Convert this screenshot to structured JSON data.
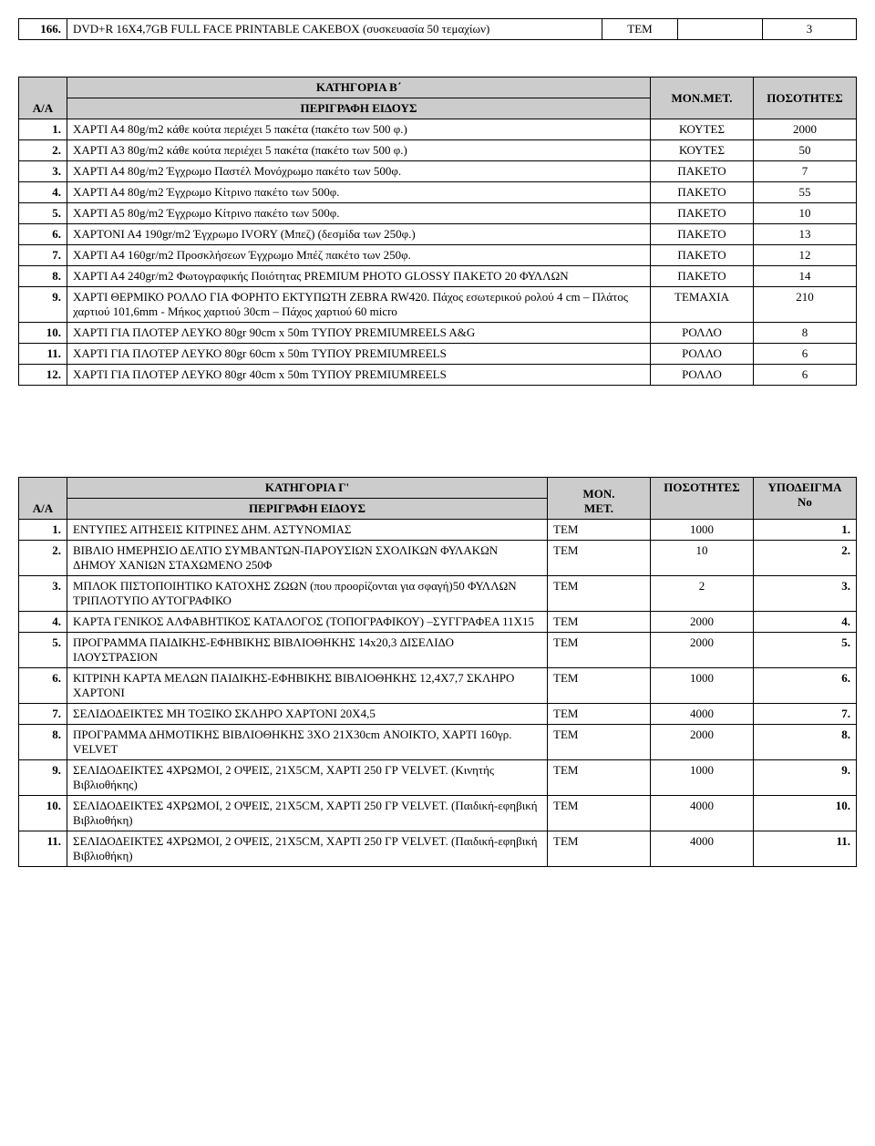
{
  "table1": {
    "rows": [
      {
        "n": "166.",
        "desc": "DVD+R 16X4,7GB FULL FACE  PRINTABLE CAKEBOX (συσκευασία  50 τεμαχίων)",
        "unit": "TEM",
        "qty": "3"
      }
    ]
  },
  "tableB": {
    "aa_label": "Α/Α",
    "category_title": "ΚΑΤΗΓΟΡΙΑ Β΄",
    "desc_label": "ΠΕΡΙΓΡΑΦΗ ΕΙΔΟΥΣ",
    "monmet": "ΜΟΝ.ΜΕΤ.",
    "qty_label": "ΠΟΣΟΤΗΤΕΣ",
    "rows": [
      {
        "n": "1.",
        "desc": "ΧΑΡΤΙ Α4 80g/m2 κάθε κούτα περιέχει 5 πακέτα (πακέτο των 500 φ.)",
        "unit": "ΚΟΥΤΕΣ",
        "qty": "2000"
      },
      {
        "n": "2.",
        "desc": "ΧΑΡΤΙ Α3 80g/m2 κάθε κούτα περιέχει 5 πακέτα (πακέτο των 500 φ.)",
        "unit": "ΚΟΥΤΕΣ",
        "qty": "50"
      },
      {
        "n": "3.",
        "desc": "ΧΑΡΤΙ Α4 80g/m2 Έγχρωμο Παστέλ Μονόχρωμο πακέτο των 500φ.",
        "unit": "ΠΑΚΕΤΟ",
        "qty": "7"
      },
      {
        "n": "4.",
        "desc": "ΧΑΡΤΙ Α4 80g/m2 Έγχρωμο Κίτρινο πακέτο των 500φ.",
        "unit": "ΠΑΚΕΤΟ",
        "qty": "55"
      },
      {
        "n": "5.",
        "desc": "ΧΑΡΤΙ Α5 80g/m2 Έγχρωμο Κίτρινο πακέτο των 500φ.",
        "unit": "ΠΑΚΕΤΟ",
        "qty": "10"
      },
      {
        "n": "6.",
        "desc": "ΧΑΡΤΟΝΙ Α4 190gr/m2  Έγχρωμο IVORY (Μπεζ) (δεσμίδα των 250φ.)",
        "unit": "ΠΑΚΕΤΟ",
        "qty": "13"
      },
      {
        "n": "7.",
        "desc": "ΧΑΡΤΙ Α4 160gr/m2 Προσκλήσεων  Έγχρωμο Μπέζ  πακέτο των 250φ.",
        "unit": "ΠΑΚΕΤΟ",
        "qty": "12"
      },
      {
        "n": "8.",
        "desc": "ΧΑΡΤΙ Α4 240gr/m2  Φωτογραφικής Ποιότητας  PREMIUM PHOTO GLOSSY  ΠΑΚΕΤΟ 20 ΦΥΛΛΩΝ",
        "unit": "ΠΑΚΕΤΟ",
        "qty": "14"
      },
      {
        "n": "9.",
        "desc": "ΧΑΡΤΙ  ΘΕΡΜΙΚΟ ΡΟΛΛΟ  ΓΙΑ ΦΟΡΗΤΟ ΕΚΤΥΠΩΤΗ  ZEBRA RW420. Πάχος εσωτερικού ρολού 4 cm – Πλάτος  χαρτιού 101,6mm -  Μήκος χαρτιού 30cm – Πάχος χαρτιού 60 micro",
        "unit": "ΤΕΜΑΧΙΑ",
        "qty": "210"
      },
      {
        "n": "10.",
        "desc": "ΧΑΡΤΙ ΓΙΑ ΠΛΟΤΕΡ ΛΕΥΚΟ 80gr 90cm x 50m ΤΥΠΟΥ PREMIUMREELS A&G",
        "unit": "ΡΟΛΛΟ",
        "qty": "8"
      },
      {
        "n": "11.",
        "desc": "ΧΑΡΤΙ ΓΙΑ ΠΛΟΤΕΡ ΛΕΥΚΟ 80gr 60cm x 50m ΤΥΠΟΥ PREMIUMREELS",
        "unit": "ΡΟΛΛΟ",
        "qty": "6"
      },
      {
        "n": "12.",
        "desc": "ΧΑΡΤΙ ΓΙΑ ΠΛΟΤΕΡ ΛΕΥΚΟ 80gr 40cm x 50m ΤΥΠΟΥ PREMIUMREELS",
        "unit": "ΡΟΛΛΟ",
        "qty": "6"
      }
    ]
  },
  "tableC": {
    "aa_label": "Α/Α",
    "category_title": "ΚΑΤΗΓΟΡΙΑ Γ'",
    "desc_label": "ΠΕΡΙΓΡΑΦΗ ΕΙΔΟΥΣ",
    "monmet1": "MON.",
    "monmet2": "MET.",
    "qty_label": "ΠΟΣΟΤΗΤΕΣ",
    "spec_label1": "ΥΠΟΔΕΙΓΜΑ",
    "spec_label2": "Νο",
    "rows": [
      {
        "n": "1.",
        "desc": "ΕΝΤΥΠΕΣ ΑΙΤΗΣΕΙΣ ΚΙΤΡΙΝΕΣ ΔΗΜ. ΑΣΤΥΝΟΜΙΑΣ",
        "unit": "TEM",
        "qty": "1000",
        "spec": "1."
      },
      {
        "n": "2.",
        "desc": "ΒΙΒΛΙΟ ΗΜΕΡΗΣΙΟ ΔΕΛΤΙΟ ΣΥΜΒΑΝΤΩΝ-ΠΑΡΟΥΣΙΩΝ ΣΧΟΛΙΚΩΝ ΦΥΛΑΚΩΝ ΔΗΜΟΥ ΧΑΝΙΩΝ ΣΤΑΧΩΜΕΝΟ 250Φ",
        "unit": "TEM",
        "qty": "10",
        "spec": "2."
      },
      {
        "n": "3.",
        "desc": "ΜΠΛΟΚ ΠΙΣΤΟΠΟΙΗΤΙΚΟ ΚΑΤΟΧΗΣ ΖΩΩΝ (που προορίζονται για σφαγή)50 ΦΥΛΛΩΝ ΤΡΙΠΛΟΤΥΠΟ ΑΥΤΟΓΡΑΦΙΚΟ",
        "unit": "TEM",
        "qty": "2",
        "spec": "3."
      },
      {
        "n": "4.",
        "desc": "ΚΑΡΤΑ ΓΕΝΙΚΟΣ ΑΛΦΑΒΗΤΙΚΟΣ ΚΑΤΑΛΟΓΟΣ (ΤΟΠΟΓΡΑΦΙΚΟΥ) –ΣΥΓΓΡΑΦΕΑ 11X15",
        "unit": "TEM",
        "qty": "2000",
        "spec": "4."
      },
      {
        "n": "5.",
        "desc": "ΠΡΟΓΡΑΜΜΑ ΠΑΙΔΙΚΗΣ-ΕΦΗΒΙΚΗΣ ΒΙΒΛΙΟΘΗΚΗΣ 14x20,3 ΔΙΣΕΛΙΔΟ ΙΛΟΥΣΤΡΑΣΙΟΝ",
        "unit": "TEM",
        "qty": "2000",
        "spec": "5."
      },
      {
        "n": "6.",
        "desc": "ΚΙΤΡΙΝΗ ΚΑΡΤΑ ΜΕΛΩΝ ΠΑΙΔΙΚΗΣ-ΕΦΗΒΙΚΗΣ ΒΙΒΛΙΟΘΗΚΗΣ 12,4X7,7 ΣΚΛΗΡΟ ΧΑΡΤΟΝΙ",
        "unit": "TEM",
        "qty": "1000",
        "spec": "6."
      },
      {
        "n": "7.",
        "desc": "ΣΕΛΙΔΟΔΕΙΚΤΕΣ ΜΗ ΤΟΞΙΚΟ ΣΚΛΗΡΟ ΧΑΡΤΟΝΙ 20X4,5",
        "unit": "TEM",
        "qty": "4000",
        "spec": "7."
      },
      {
        "n": "8.",
        "desc": "ΠΡΟΓΡΑΜΜΑ ΔΗΜΟΤΙΚΗΣ ΒΙΒΛΙΟΘΗΚΗΣ 3XO 21X30cm ΑΝΟΙΚΤΟ, ΧΑΡΤΙ 160γρ. VELVET",
        "unit": "TEM",
        "qty": "2000",
        "spec": "8."
      },
      {
        "n": "9.",
        "desc": "ΣΕΛΙΔΟΔΕΙΚΤΕΣ 4ΧΡΩΜΟΙ, 2 ΟΨΕΙΣ, 21X5CM, ΧΑΡΤΙ 250 ΓΡ VELVET. (Κινητής Βιβλιοθήκης)",
        "unit": "TEM",
        "qty": "1000",
        "spec": "9."
      },
      {
        "n": "10.",
        "desc": "ΣΕΛΙΔΟΔΕΙΚΤΕΣ 4ΧΡΩΜΟΙ, 2 ΟΨΕΙΣ, 21X5CM, ΧΑΡΤΙ 250 ΓΡ VELVET. (Παιδική-εφηβική Βιβλιοθήκη)",
        "unit": "TEM",
        "qty": "4000",
        "spec": "10."
      },
      {
        "n": "11.",
        "desc": "ΣΕΛΙΔΟΔΕΙΚΤΕΣ 4ΧΡΩΜΟΙ, 2 ΟΨΕΙΣ, 21X5CM, ΧΑΡΤΙ 250 ΓΡ VELVET. (Παιδική-εφηβική Βιβλιοθήκη)",
        "unit": "TEM",
        "qty": "4000",
        "spec": "11."
      }
    ]
  }
}
